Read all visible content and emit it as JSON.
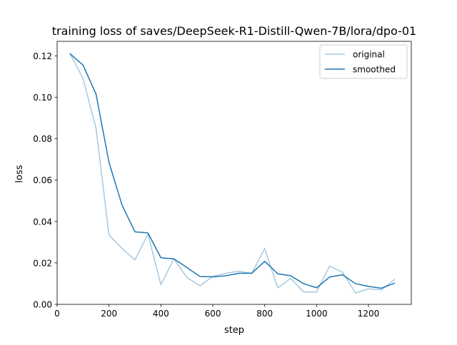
{
  "chart_data": {
    "type": "line",
    "title": "training loss of saves/DeepSeek-R1-Distill-Qwen-7B/lora/dpo-01",
    "xlabel": "step",
    "ylabel": "loss",
    "xlim": [
      0,
      1365
    ],
    "ylim": [
      0,
      0.127
    ],
    "xticks": [
      0,
      200,
      400,
      600,
      800,
      1000,
      1200
    ],
    "yticks": [
      0.0,
      0.02,
      0.04,
      0.06,
      0.08,
      0.1,
      0.12
    ],
    "xtick_labels": [
      "0",
      "200",
      "400",
      "600",
      "800",
      "1000",
      "1200"
    ],
    "ytick_labels": [
      "0.00",
      "0.02",
      "0.04",
      "0.06",
      "0.08",
      "0.10",
      "0.12"
    ],
    "grid": false,
    "legend_position": "top-right",
    "x": [
      50,
      100,
      150,
      200,
      250,
      300,
      350,
      400,
      450,
      500,
      550,
      600,
      650,
      700,
      750,
      800,
      850,
      900,
      950,
      1000,
      1050,
      1100,
      1150,
      1200,
      1250,
      1300
    ],
    "series": [
      {
        "name": "original",
        "color": "#a6c8e0",
        "values": [
          0.121,
          0.109,
          0.085,
          0.0335,
          0.027,
          0.0215,
          0.034,
          0.0095,
          0.022,
          0.013,
          0.009,
          0.0135,
          0.015,
          0.016,
          0.015,
          0.027,
          0.008,
          0.0125,
          0.006,
          0.006,
          0.0185,
          0.0155,
          0.0055,
          0.0075,
          0.007,
          0.012
        ]
      },
      {
        "name": "smoothed",
        "color": "#1f77b4",
        "values": [
          0.121,
          0.1155,
          0.1015,
          0.0685,
          0.048,
          0.035,
          0.0345,
          0.0225,
          0.022,
          0.0178,
          0.0135,
          0.0133,
          0.0138,
          0.015,
          0.015,
          0.0208,
          0.0148,
          0.0138,
          0.01,
          0.008,
          0.0132,
          0.0143,
          0.01,
          0.0087,
          0.0078,
          0.0102
        ]
      }
    ]
  }
}
